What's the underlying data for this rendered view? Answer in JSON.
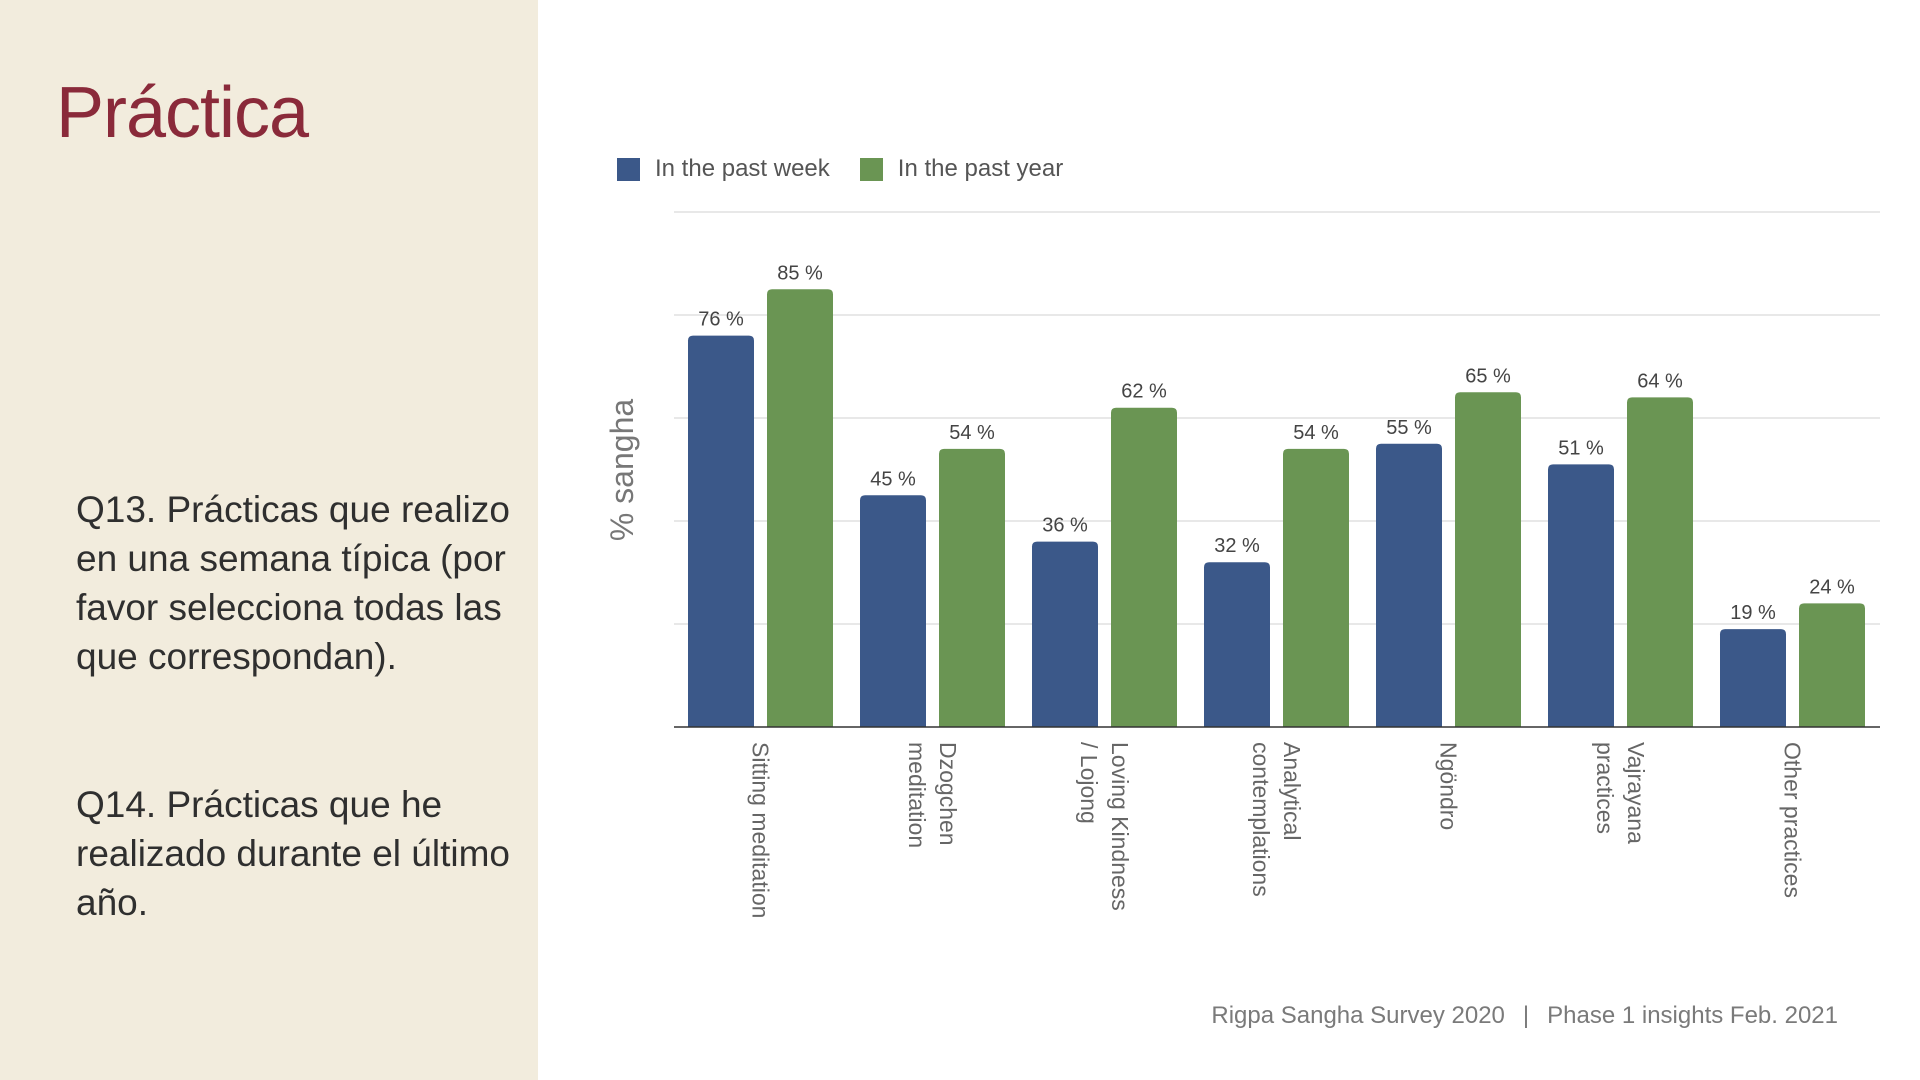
{
  "slide": {
    "title": "Práctica",
    "q13": "Q13. Prácticas que realizo en una semana típica (por favor selecciona todas las que correspondan).",
    "q14": "Q14. Prácticas que he realizado durante el último año.",
    "footer_left": "Rigpa Sangha Survey 2020",
    "footer_separator": "|",
    "footer_right": "Phase 1 insights Feb. 2021",
    "colors": {
      "panel": "#f2ecdd",
      "title": "#8a2a3a",
      "week": "#3b5889",
      "year": "#6a9553"
    }
  },
  "chart_data": {
    "type": "bar",
    "title": "",
    "xlabel": "",
    "ylabel": "% sangha",
    "ylim": [
      0,
      100
    ],
    "categories": [
      "Sitting meditation",
      "Dzogchen meditation",
      "Loving Kindness / Lojong",
      "Analytical contemplations",
      "Ngöndro",
      "Vajrayana practices",
      "Other practices"
    ],
    "category_lines": [
      [
        "Sitting meditation"
      ],
      [
        "Dzogchen",
        "meditation"
      ],
      [
        "Loving Kindness",
        "/ Lojong"
      ],
      [
        "Analytical",
        "contemplations"
      ],
      [
        "Ngöndro"
      ],
      [
        "Vajrayana",
        "practices"
      ],
      [
        "Other practices"
      ]
    ],
    "series": [
      {
        "name": "In the past week",
        "color": "#3b5889",
        "values": [
          76,
          45,
          36,
          32,
          55,
          51,
          19
        ],
        "labels": [
          "76 %",
          "45 %",
          "36 %",
          "32 %",
          "55 %",
          "51 %",
          "19 %"
        ]
      },
      {
        "name": "In the past year",
        "color": "#6a9553",
        "values": [
          85,
          54,
          62,
          54,
          65,
          64,
          24
        ],
        "labels": [
          "85 %",
          "54 %",
          "62 %",
          "54 %",
          "65 %",
          "64 %",
          "24 %"
        ]
      }
    ],
    "grid": true,
    "legend_position": "top-left"
  }
}
